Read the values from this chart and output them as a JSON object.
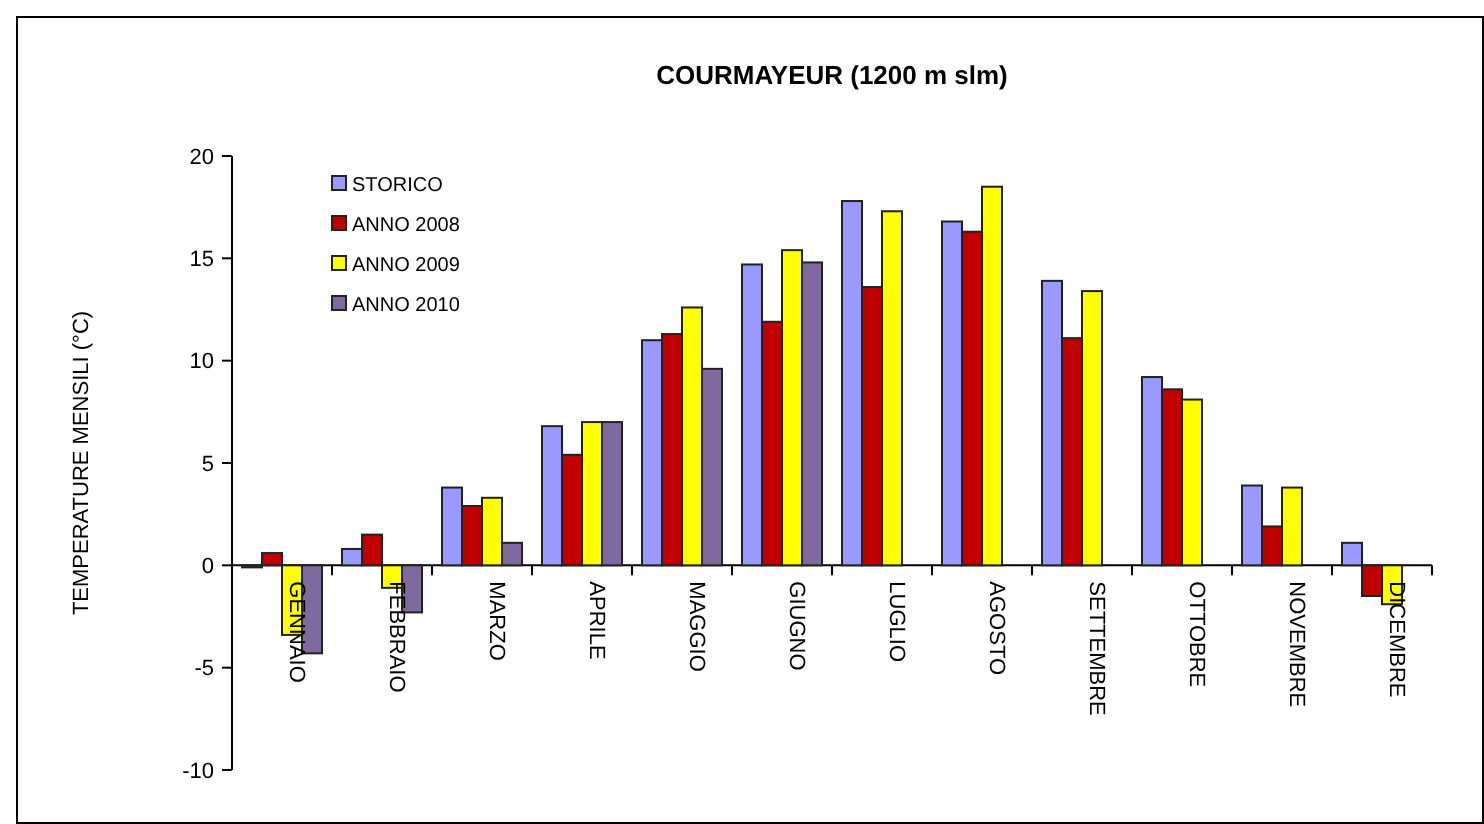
{
  "chart_data": {
    "type": "bar",
    "title": "COURMAYEUR (1200 m slm)",
    "ylabel": "TEMPERATURE MENSILI (°C)",
    "categories": [
      "GENNAIO",
      "FEBBRAIO",
      "MARZO",
      "APRILE",
      "MAGGIO",
      "GIUGNO",
      "LUGLIO",
      "AGOSTO",
      "SETTEMBRE",
      "OTTOBRE",
      "NOVEMBRE",
      "DICEMBRE"
    ],
    "series": [
      {
        "name": "STORICO",
        "color": "#9999ff",
        "values": [
          -0.1,
          0.8,
          3.8,
          6.8,
          11.0,
          14.7,
          17.8,
          16.8,
          13.9,
          9.2,
          3.9,
          1.1
        ]
      },
      {
        "name": "ANNO 2008",
        "color": "#c00000",
        "values": [
          0.6,
          1.5,
          2.9,
          5.4,
          11.3,
          11.9,
          13.6,
          16.3,
          11.1,
          8.6,
          1.9,
          -1.5
        ]
      },
      {
        "name": "ANNO 2009",
        "color": "#ffff00",
        "values": [
          -3.4,
          -1.1,
          3.3,
          7.0,
          12.6,
          15.4,
          17.3,
          18.5,
          13.4,
          8.1,
          3.8,
          -1.9
        ]
      },
      {
        "name": "ANNO 2010",
        "color": "#7f6a9f",
        "values": [
          -4.3,
          -2.3,
          1.1,
          7.0,
          9.6,
          14.8,
          null,
          null,
          null,
          null,
          null,
          null
        ]
      }
    ],
    "ylim": [
      -10,
      20
    ],
    "yticks": [
      -10,
      -5,
      0,
      5,
      10,
      15,
      20
    ],
    "legend": "top left"
  }
}
